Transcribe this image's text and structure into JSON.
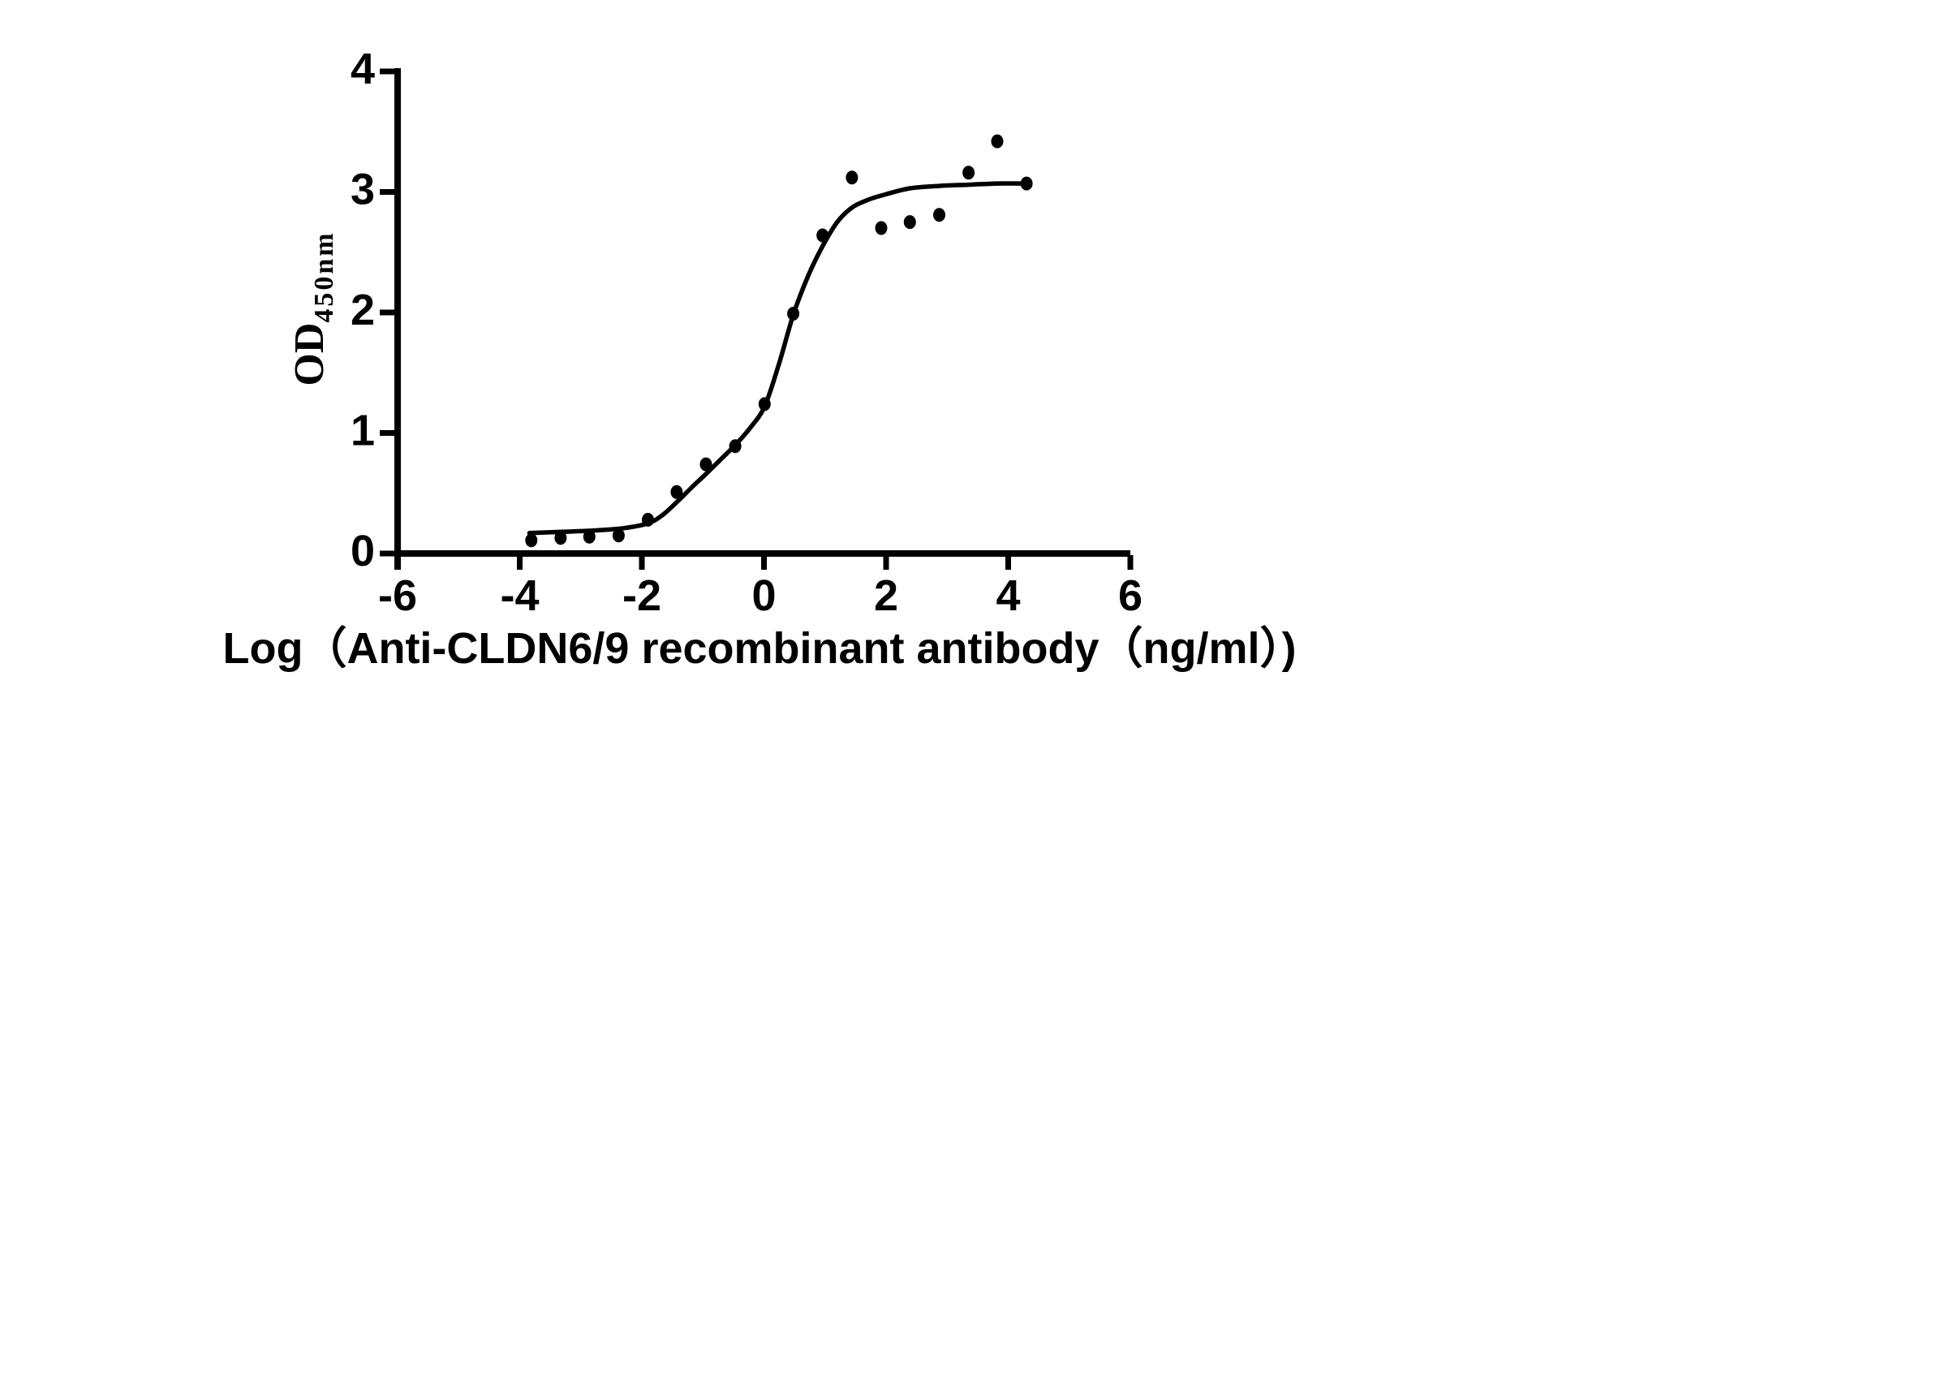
{
  "page": {
    "background_color": "#ffffff",
    "foreground_color": "#000000"
  },
  "chart_data": {
    "type": "scatter",
    "title": "",
    "description": "ELISA sigmoidal binding curve (log dose vs OD450)",
    "x_axis": {
      "label": "Log（Anti-CLDN6/9 recombinant antibody（ng/ml）)",
      "min": -6,
      "max": 6,
      "ticks": [
        -6,
        -4,
        -2,
        0,
        2,
        4,
        6
      ]
    },
    "y_axis": {
      "label": "OD",
      "label_subscript": "450nm",
      "min": 0,
      "max": 4,
      "ticks": [
        0,
        1,
        2,
        3,
        4
      ]
    },
    "grid": false,
    "legend": "none",
    "colors": {
      "marker": "#000000",
      "curve": "#000000",
      "axis": "#000000",
      "background": "#ffffff"
    },
    "points": [
      [
        -3.81,
        0.11
      ],
      [
        -3.33,
        0.13
      ],
      [
        -2.86,
        0.14
      ],
      [
        -2.38,
        0.15
      ],
      [
        -1.9,
        0.28
      ],
      [
        -1.43,
        0.51
      ],
      [
        -0.95,
        0.74
      ],
      [
        -0.47,
        0.89
      ],
      [
        0.01,
        1.24
      ],
      [
        0.48,
        1.99
      ],
      [
        0.96,
        2.64
      ],
      [
        1.44,
        3.12
      ],
      [
        1.92,
        2.7
      ],
      [
        2.39,
        2.75
      ],
      [
        2.87,
        2.81
      ],
      [
        3.35,
        3.16
      ],
      [
        3.82,
        3.42
      ],
      [
        4.3,
        3.07
      ]
    ],
    "fit_curve": {
      "model": "four-parameter logistic dose-response fit",
      "bottom": 0.17,
      "top": 3.07,
      "samples": [
        [
          -3.84,
          0.17
        ],
        [
          -3.3,
          0.18
        ],
        [
          -2.8,
          0.19
        ],
        [
          -2.3,
          0.21
        ],
        [
          -1.9,
          0.25
        ],
        [
          -1.66,
          0.32
        ],
        [
          -1.42,
          0.43
        ],
        [
          -1.18,
          0.55
        ],
        [
          -0.95,
          0.66
        ],
        [
          -0.71,
          0.78
        ],
        [
          -0.47,
          0.9
        ],
        [
          -0.23,
          1.04
        ],
        [
          0.01,
          1.22
        ],
        [
          0.25,
          1.58
        ],
        [
          0.48,
          1.98
        ],
        [
          0.72,
          2.3
        ],
        [
          0.96,
          2.55
        ],
        [
          1.2,
          2.75
        ],
        [
          1.44,
          2.87
        ],
        [
          1.68,
          2.93
        ],
        [
          1.92,
          2.97
        ],
        [
          2.39,
          3.03
        ],
        [
          2.87,
          3.05
        ],
        [
          3.35,
          3.06
        ],
        [
          3.82,
          3.07
        ],
        [
          4.3,
          3.07
        ]
      ]
    }
  }
}
